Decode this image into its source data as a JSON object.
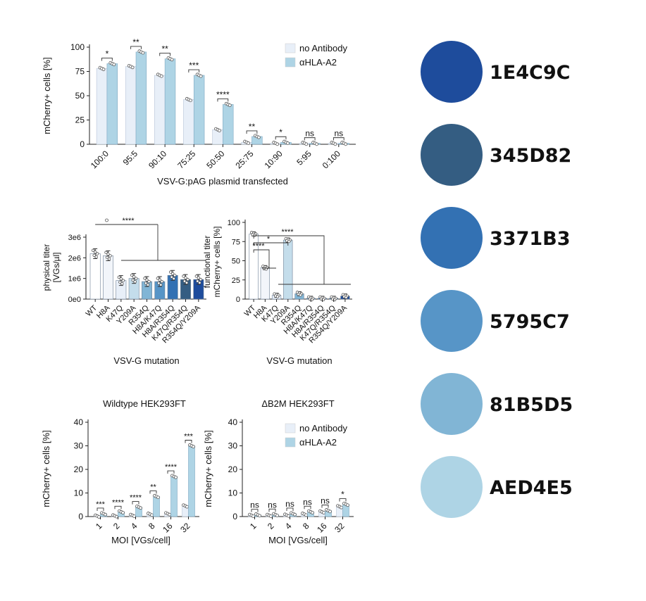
{
  "colors": {
    "no_antibody": "#E8EFF8",
    "alpha_hla": "#AED4E5",
    "axis": "#222222"
  },
  "chart_data": [
    {
      "id": "panel-top",
      "type": "bar",
      "title": "",
      "xlabel": "VSV-G:pAG plasmid transfected",
      "ylabel": "mCherry+ cells [%]",
      "ylim": [
        0,
        100
      ],
      "yticks": [
        "0",
        "25",
        "50",
        "75",
        "100"
      ],
      "categories": [
        "100:0",
        "95:5",
        "90:10",
        "75:25",
        "50:50",
        "25:75",
        "10:90",
        "5:95",
        "0:100"
      ],
      "series": [
        {
          "name": "no Antibody",
          "values": [
            78,
            80,
            71,
            46,
            15,
            2,
            1,
            1,
            1
          ]
        },
        {
          "name": "αHLA-A2",
          "values": [
            83,
            95,
            88,
            71,
            41,
            8,
            2,
            1,
            1
          ]
        }
      ],
      "significance": [
        "*",
        "**",
        "**",
        "***",
        "****",
        "**",
        "*",
        "ns",
        "ns"
      ],
      "legend": [
        "no Antibody",
        "αHLA-A2"
      ],
      "legend_position": "top-right"
    },
    {
      "id": "panel-physical",
      "type": "bar",
      "xlabel": "VSV-G mutation",
      "ylabel": "physical titer [VGs/µl]",
      "ylabel_lines": [
        "physical titer",
        "[VGs/µl]"
      ],
      "ylim": [
        0,
        3500000
      ],
      "yticks": [
        "0e0",
        "1e6",
        "2e6",
        "3e6"
      ],
      "categories": [
        "WT",
        "H8A",
        "K47Q",
        "Y209A",
        "R354Q",
        "H8A/K47Q",
        "H8A/R354Q",
        "K47Q/R354Q",
        "R354Q/Y209A"
      ],
      "values": [
        2200000,
        2100000,
        900000,
        1000000,
        850000,
        850000,
        1150000,
        950000,
        950000
      ],
      "bar_colors": [
        "#FFFFFF",
        "#F2F5FA",
        "#E8EFF8",
        "#C4DDEB",
        "#81B5D5",
        "#5795C7",
        "#3371B3",
        "#345D82",
        "#1E4C9C"
      ],
      "significance": [
        "****"
      ]
    },
    {
      "id": "panel-functional",
      "type": "bar",
      "xlabel": "VSV-G mutation",
      "ylabel": "functional titer mCherry+ cells [%]",
      "ylabel_lines": [
        "functional titer",
        "mCherry+ cells [%]"
      ],
      "ylim": [
        0,
        100
      ],
      "yticks": [
        "0",
        "25",
        "50",
        "75",
        "100"
      ],
      "categories": [
        "WT",
        "H8A",
        "K47Q",
        "Y209A",
        "R354Q",
        "H8A/K47Q",
        "H8A/R354Q",
        "K47Q/R354Q",
        "R354Q/Y209A"
      ],
      "values": [
        85,
        41,
        5,
        77,
        7,
        1,
        1,
        1,
        4
      ],
      "bar_colors": [
        "#FFFFFF",
        "#F2F5FA",
        "#E8EFF8",
        "#C4DDEB",
        "#81B5D5",
        "#5795C7",
        "#3371B3",
        "#345D82",
        "#1E4C9C"
      ],
      "significance": [
        "****",
        "*",
        "****"
      ]
    },
    {
      "id": "panel-wildtype",
      "type": "bar",
      "title": "Wildtype HEK293FT",
      "xlabel": "MOI [VGs/cell]",
      "ylabel": "mCherry+ cells [%]",
      "ylim": [
        0,
        40
      ],
      "yticks": [
        "0",
        "10",
        "20",
        "30",
        "40"
      ],
      "categories": [
        "1",
        "2",
        "4",
        "8",
        "16",
        "32"
      ],
      "series": [
        {
          "name": "no Antibody",
          "values": [
            0.2,
            0.3,
            0.5,
            1,
            1.2,
            4.5
          ]
        },
        {
          "name": "αHLA-A2",
          "values": [
            1.2,
            2,
            4,
            8.5,
            17,
            30
          ]
        }
      ],
      "significance": [
        "***",
        "****",
        "****",
        "**",
        "****",
        "***"
      ]
    },
    {
      "id": "panel-b2m",
      "type": "bar",
      "title": "ΔB2M HEK293FT",
      "xlabel": "MOI [VGs/cell]",
      "ylabel": "mCherry+ cells [%]",
      "ylim": [
        0,
        40
      ],
      "yticks": [
        "0",
        "10",
        "20",
        "30",
        "40"
      ],
      "categories": [
        "1",
        "2",
        "4",
        "8",
        "16",
        "32"
      ],
      "series": [
        {
          "name": "no Antibody",
          "values": [
            0.5,
            0.5,
            0.6,
            1,
            2,
            4.2
          ]
        },
        {
          "name": "αHLA-A2",
          "values": [
            0.7,
            0.8,
            1.2,
            2,
            2.5,
            5.2
          ]
        }
      ],
      "significance": [
        "ns",
        "ns",
        "ns",
        "ns",
        "ns",
        "*"
      ],
      "legend": [
        "no Antibody",
        "αHLA-A2"
      ],
      "legend_position": "top-right"
    }
  ],
  "swatches": [
    {
      "hex": "#1E4C9C",
      "label": "1E4C9C"
    },
    {
      "hex": "#345D82",
      "label": "345D82"
    },
    {
      "hex": "#3371B3",
      "label": "3371B3"
    },
    {
      "hex": "#5795C7",
      "label": "5795C7"
    },
    {
      "hex": "#81B5D5",
      "label": "81B5D5"
    },
    {
      "hex": "#AED4E5",
      "label": "AED4E5"
    }
  ]
}
